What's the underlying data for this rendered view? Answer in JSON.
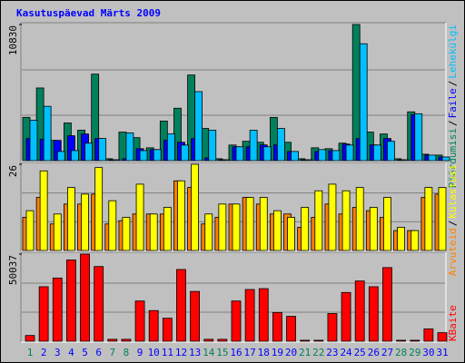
{
  "chart_data": [
    {
      "type": "bar",
      "title": "Kasutuspäevad Märts 2009",
      "ylim": [
        0,
        10830
      ],
      "yticks": [
        10830
      ],
      "legend_separator": "/",
      "series": [
        {
          "name": "Pöördumisi",
          "color": "#00805c",
          "values": [
            3440,
            5780,
            1610,
            3000,
            2420,
            6880,
            150,
            2270,
            1830,
            1020,
            3150,
            4170,
            6810,
            2560,
            150,
            1240,
            1540,
            1460,
            3440,
            1460,
            150,
            1020,
            950,
            1390,
            10830,
            2270,
            2120,
            150,
            3880,
            510,
            440
          ]
        },
        {
          "name": "Faile",
          "color": "#0000ff",
          "values": [
            1760,
            1700,
            1610,
            1980,
            2120,
            1760,
            70,
            150,
            950,
            880,
            1620,
            1460,
            1760,
            220,
            70,
            1100,
            1100,
            1250,
            1250,
            730,
            70,
            730,
            800,
            1320,
            1760,
            1250,
            1760,
            70,
            3660,
            440,
            290
          ]
        },
        {
          "name": "Lehekülgi",
          "color": "#00c0ff",
          "values": [
            3220,
            4320,
            730,
            800,
            1390,
            1760,
            70,
            2200,
            800,
            880,
            2120,
            1240,
            5490,
            2420,
            70,
            1100,
            2420,
            1100,
            2560,
            730,
            70,
            880,
            800,
            1240,
            9300,
            1240,
            1540,
            70,
            3730,
            440,
            290
          ]
        }
      ]
    },
    {
      "type": "bar",
      "ylim": [
        0,
        26
      ],
      "yticks": [
        26
      ],
      "legend_separator": "/",
      "series": [
        {
          "name": "Arvuteid",
          "color": "#ff8000",
          "values": [
            10,
            16,
            8,
            14,
            14,
            17,
            8,
            9,
            11,
            11,
            11,
            21,
            19,
            8,
            10,
            14,
            16,
            14,
            11,
            11,
            7,
            10,
            14,
            11,
            13,
            12,
            10,
            6,
            6,
            16,
            17
          ]
        },
        {
          "name": "Külastusi",
          "color": "#ffff00",
          "values": [
            12,
            24,
            11,
            19,
            17,
            25,
            15,
            10,
            20,
            11,
            13,
            21,
            26,
            11,
            14,
            14,
            16,
            16,
            12,
            10,
            13,
            18,
            20,
            18,
            19,
            13,
            16,
            7,
            6,
            19,
            19
          ]
        }
      ]
    },
    {
      "type": "bar",
      "ylim": [
        0,
        50037
      ],
      "yticks": [
        50037
      ],
      "categories": [
        "1",
        "2",
        "3",
        "4",
        "5",
        "6",
        "7",
        "8",
        "9",
        "10",
        "11",
        "12",
        "13",
        "14",
        "15",
        "16",
        "17",
        "18",
        "19",
        "20",
        "21",
        "22",
        "23",
        "24",
        "25",
        "26",
        "27",
        "28",
        "29",
        "30",
        "31"
      ],
      "category_colors": [
        "#00805c",
        "#0000ff",
        "#0000ff",
        "#0000ff",
        "#0000ff",
        "#0000ff",
        "#00805c",
        "#00805c",
        "#0000ff",
        "#0000ff",
        "#0000ff",
        "#0000ff",
        "#0000ff",
        "#00805c",
        "#00805c",
        "#0000ff",
        "#0000ff",
        "#0000ff",
        "#0000ff",
        "#0000ff",
        "#00805c",
        "#00805c",
        "#0000ff",
        "#0000ff",
        "#0000ff",
        "#0000ff",
        "#0000ff",
        "#00805c",
        "#00805c",
        "#0000ff",
        "#0000ff"
      ],
      "series": [
        {
          "name": "KBaite",
          "color": "#ff0000",
          "values": [
            3300,
            31300,
            36300,
            46700,
            50037,
            42900,
            1100,
            1100,
            23100,
            17600,
            13200,
            41200,
            28600,
            1100,
            1100,
            23100,
            29700,
            30200,
            16500,
            14300,
            550,
            550,
            15900,
            28000,
            34600,
            31300,
            42300,
            550,
            550,
            7100,
            4900
          ]
        }
      ]
    }
  ]
}
